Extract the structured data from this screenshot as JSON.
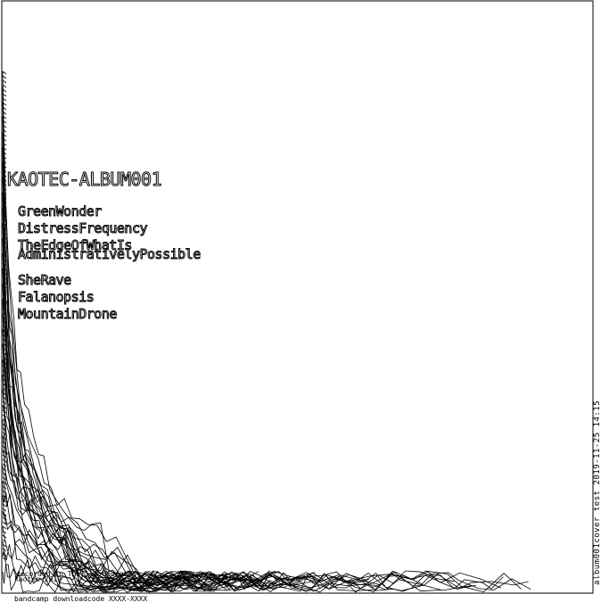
{
  "cover": {
    "title": "KAOTEC-ALBUM001",
    "tracks": [
      "GreenWonder",
      "DistressFrequency",
      "TheEdgeOfWhatIs",
      "AdministrativelyPossible",
      "SheRave",
      "Falanopsis",
      "MountainDrone"
    ],
    "footer_location": "recorded in Tbilisi Georgia",
    "footer_year": "kaotec 2019",
    "download_code": "bandcamp downloadcode XXXX-XXXX",
    "side_caption": "album001cover test     2019-11-25 14:15"
  },
  "colors": {
    "background": "#ffffff",
    "ink": "#000000"
  }
}
